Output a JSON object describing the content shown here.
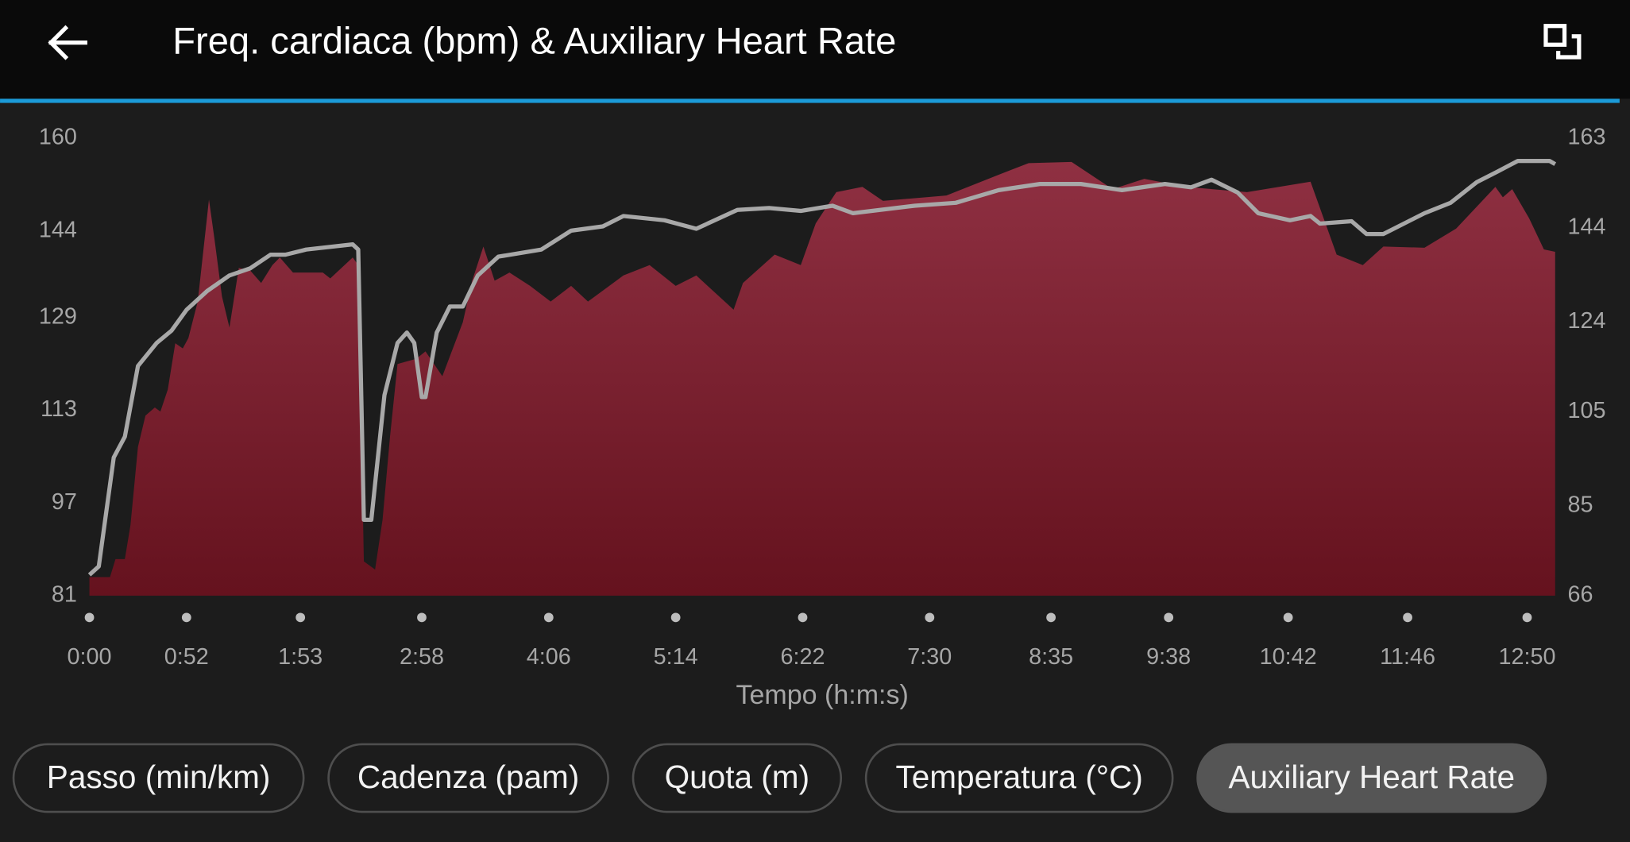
{
  "header": {
    "title": "Freq. cardiaca (bpm) & Auxiliary Heart Rate"
  },
  "chart_data": {
    "type": "area",
    "xlabel": "Tempo (h:m:s)",
    "xlim": [
      0,
      785
    ],
    "xticks": [
      {
        "value": 0,
        "label": "0:00"
      },
      {
        "value": 52,
        "label": "0:52"
      },
      {
        "value": 113,
        "label": "1:53"
      },
      {
        "value": 178,
        "label": "2:58"
      },
      {
        "value": 246,
        "label": "4:06"
      },
      {
        "value": 314,
        "label": "5:14"
      },
      {
        "value": 382,
        "label": "6:22"
      },
      {
        "value": 450,
        "label": "7:30"
      },
      {
        "value": 515,
        "label": "8:35"
      },
      {
        "value": 578,
        "label": "9:38"
      },
      {
        "value": 642,
        "label": "10:42"
      },
      {
        "value": 706,
        "label": "11:46"
      },
      {
        "value": 770,
        "label": "12:50"
      }
    ],
    "ylim": [
      81,
      160
    ],
    "yticks": [
      81,
      97,
      113,
      129,
      144,
      160
    ],
    "y2lim": [
      66,
      163
    ],
    "y2ticks": [
      66,
      85,
      105,
      124,
      144,
      163
    ],
    "series": [
      {
        "type": "area",
        "color": "#7a2232",
        "x": [
          0,
          11,
          14,
          19,
          22,
          26,
          30,
          35,
          38,
          42,
          46,
          50,
          53,
          58,
          64,
          67,
          71,
          75,
          80,
          86,
          92,
          98,
          102,
          109,
          125,
          129,
          141,
          144,
          147,
          153,
          157,
          161,
          165,
          175,
          180,
          189,
          200,
          205,
          211,
          217,
          225,
          236,
          247,
          258,
          267,
          286,
          300,
          314,
          325,
          345,
          350,
          367,
          381,
          389,
          400,
          414,
          425,
          459,
          487,
          503,
          526,
          548,
          565,
          587,
          620,
          654,
          668,
          682,
          693,
          715,
          732,
          753,
          757,
          762,
          771,
          779,
          785
        ],
        "values": [
          84.2,
          84.2,
          87.3,
          87.3,
          93.2,
          106.7,
          112.1,
          113.5,
          112.8,
          116.6,
          124.6,
          123.7,
          125.5,
          131.8,
          149.4,
          142.6,
          132.7,
          127.3,
          137.6,
          137.2,
          135,
          138.1,
          139.4,
          136.8,
          136.8,
          135.8,
          139.4,
          138.1,
          86.9,
          85.5,
          94.1,
          108.5,
          121,
          121.9,
          123.2,
          118.9,
          128.2,
          135.4,
          141.3,
          135.4,
          136.8,
          134.5,
          131.8,
          134.5,
          131.8,
          136.3,
          138.1,
          134.5,
          136.3,
          130.4,
          135,
          139.9,
          138.1,
          145.3,
          150.7,
          151.6,
          149.2,
          150.1,
          153.7,
          155.7,
          155.9,
          151.2,
          153,
          151.6,
          150.7,
          152.5,
          139.9,
          138.1,
          141.3,
          141.1,
          144.4,
          151.6,
          149.8,
          151.2,
          146.2,
          140.8,
          140.4
        ]
      },
      {
        "type": "line",
        "axis": "y2",
        "color": "#a8a8a8",
        "x": [
          0,
          5,
          13,
          19,
          26,
          36,
          44,
          52,
          63,
          75,
          86,
          97,
          105,
          116,
          141,
          144,
          147,
          151,
          158,
          165,
          170,
          174,
          178,
          180,
          186,
          193,
          200,
          208,
          219,
          242,
          258,
          275,
          286,
          308,
          325,
          347,
          364,
          381,
          398,
          409,
          442,
          464,
          487,
          509,
          531,
          553,
          576,
          590,
          601,
          615,
          626,
          643,
          654,
          659,
          676,
          684,
          693,
          715,
          729,
          743,
          754,
          765,
          782,
          785
        ],
        "values": [
          70.4,
          72.2,
          95.3,
          99.7,
          114.7,
          119.6,
          122.2,
          126.6,
          130.6,
          133.9,
          135.4,
          138.3,
          138.3,
          139.4,
          140.5,
          139.4,
          82.1,
          82.1,
          108.5,
          119.6,
          121.8,
          119.6,
          108.1,
          108.1,
          121.8,
          127.3,
          127.3,
          133.9,
          137.9,
          139.4,
          143.4,
          144.3,
          146.5,
          145.6,
          143.8,
          147.8,
          148.2,
          147.6,
          148.7,
          147.1,
          148.7,
          149.3,
          152,
          153.3,
          153.3,
          152,
          153.3,
          152.6,
          154.2,
          151.5,
          147.1,
          145.6,
          146.5,
          144.9,
          145.4,
          142.7,
          142.7,
          147.1,
          149.3,
          153.7,
          155.9,
          158.2,
          158.2,
          157.5
        ]
      }
    ]
  },
  "tabs": [
    "Passo (min/km)",
    "Cadenza (pam)",
    "Quota (m)",
    "Temperatura (°C)",
    "Auxiliary Heart Rate"
  ],
  "active_tab": 4
}
